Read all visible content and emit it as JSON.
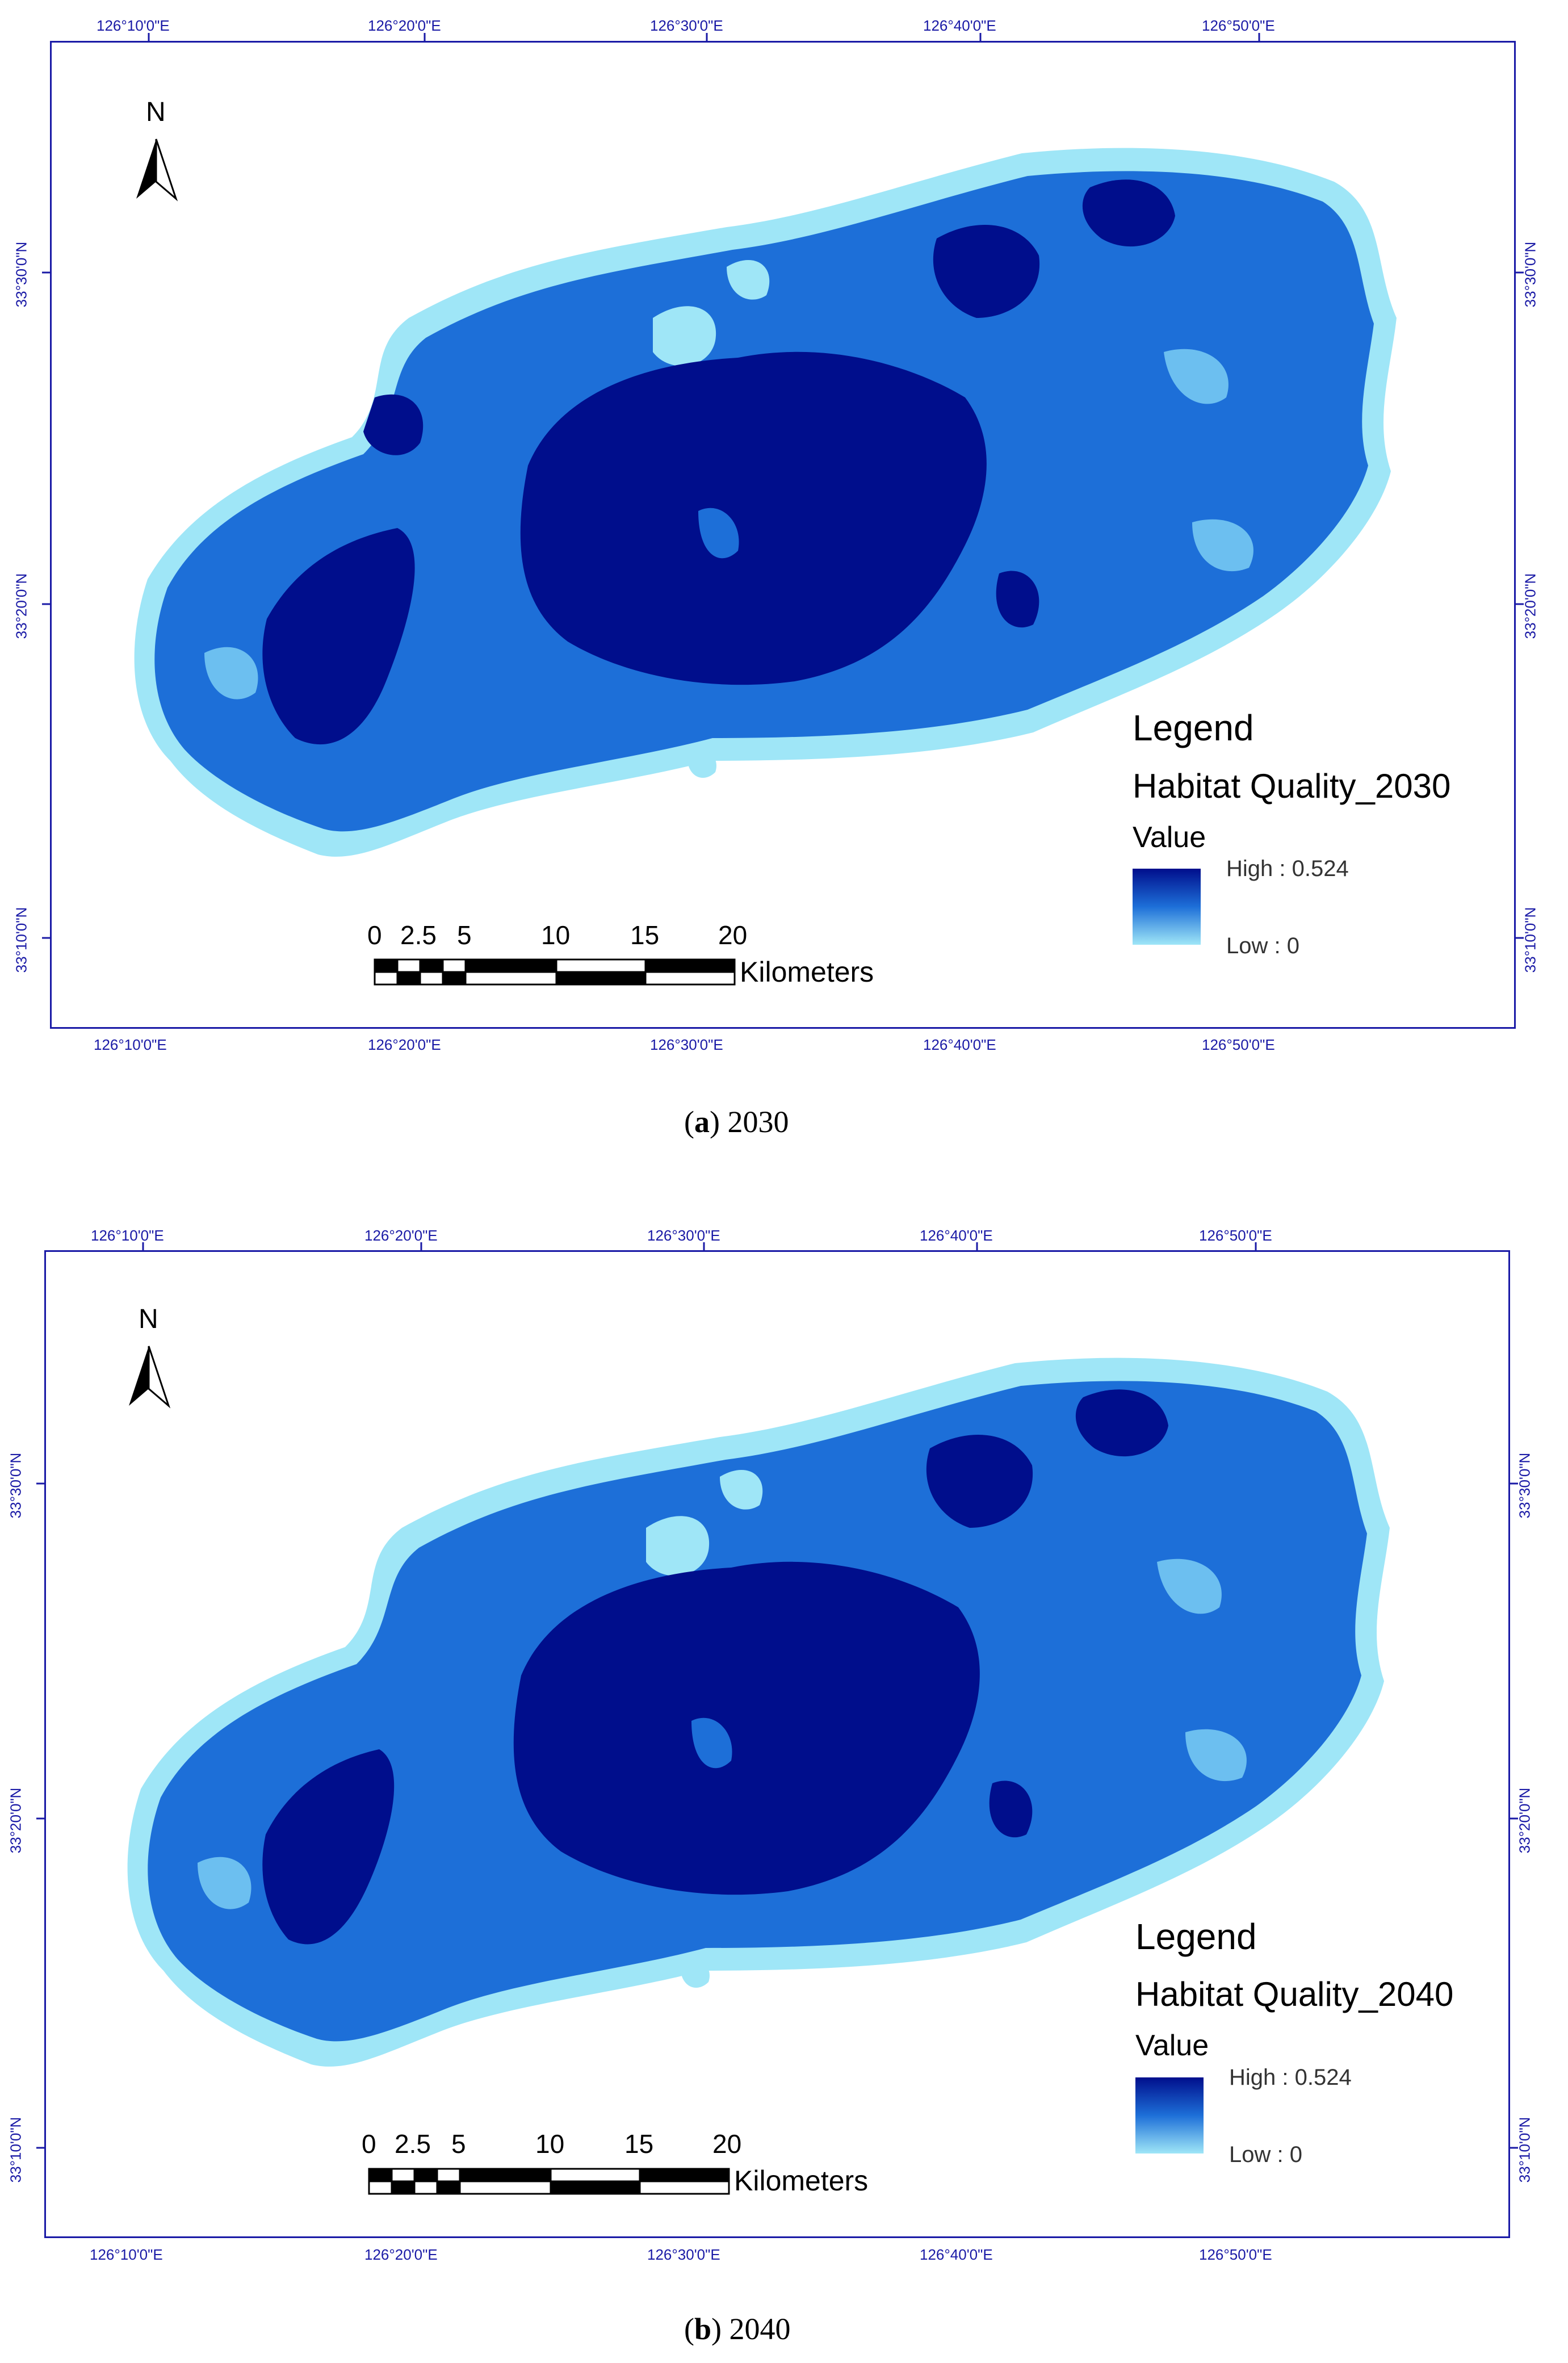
{
  "panels": [
    {
      "id": "a",
      "longitude_labels": [
        "126°10'0\"E",
        "126°20'0\"E",
        "126°30'0\"E",
        "126°40'0\"E",
        "126°50'0\"E"
      ],
      "latitude_labels": [
        "33°30'0\"N",
        "33°20'0\"N",
        "33°10'0\"N"
      ],
      "north_label": "N",
      "legend": {
        "title": "Legend",
        "layer_name": "Habitat Quality_2030",
        "value_label": "Value",
        "high_label": "High : 0.524",
        "low_label": "Low : 0"
      },
      "scale_bar": {
        "ticks": [
          "0",
          "2.5",
          "5",
          "10",
          "15",
          "20"
        ],
        "unit": "Kilometers"
      },
      "caption": {
        "letter": "a",
        "year": "2030"
      }
    },
    {
      "id": "b",
      "longitude_labels": [
        "126°10'0\"E",
        "126°20'0\"E",
        "126°30'0\"E",
        "126°40'0\"E",
        "126°50'0\"E"
      ],
      "latitude_labels": [
        "33°30'0\"N",
        "33°20'0\"N",
        "33°10'0\"N"
      ],
      "north_label": "N",
      "legend": {
        "title": "Legend",
        "layer_name": "Habitat Quality_2040",
        "value_label": "Value",
        "high_label": "High : 0.524",
        "low_label": "Low : 0"
      },
      "scale_bar": {
        "ticks": [
          "0",
          "2.5",
          "5",
          "10",
          "15",
          "20"
        ],
        "unit": "Kilometers"
      },
      "caption": {
        "letter": "b",
        "year": "2040"
      }
    }
  ],
  "colors": {
    "frame": "#1a1aa6",
    "high": "#000e8c",
    "mid": "#1d6fd8",
    "low": "#9fe6f7"
  }
}
